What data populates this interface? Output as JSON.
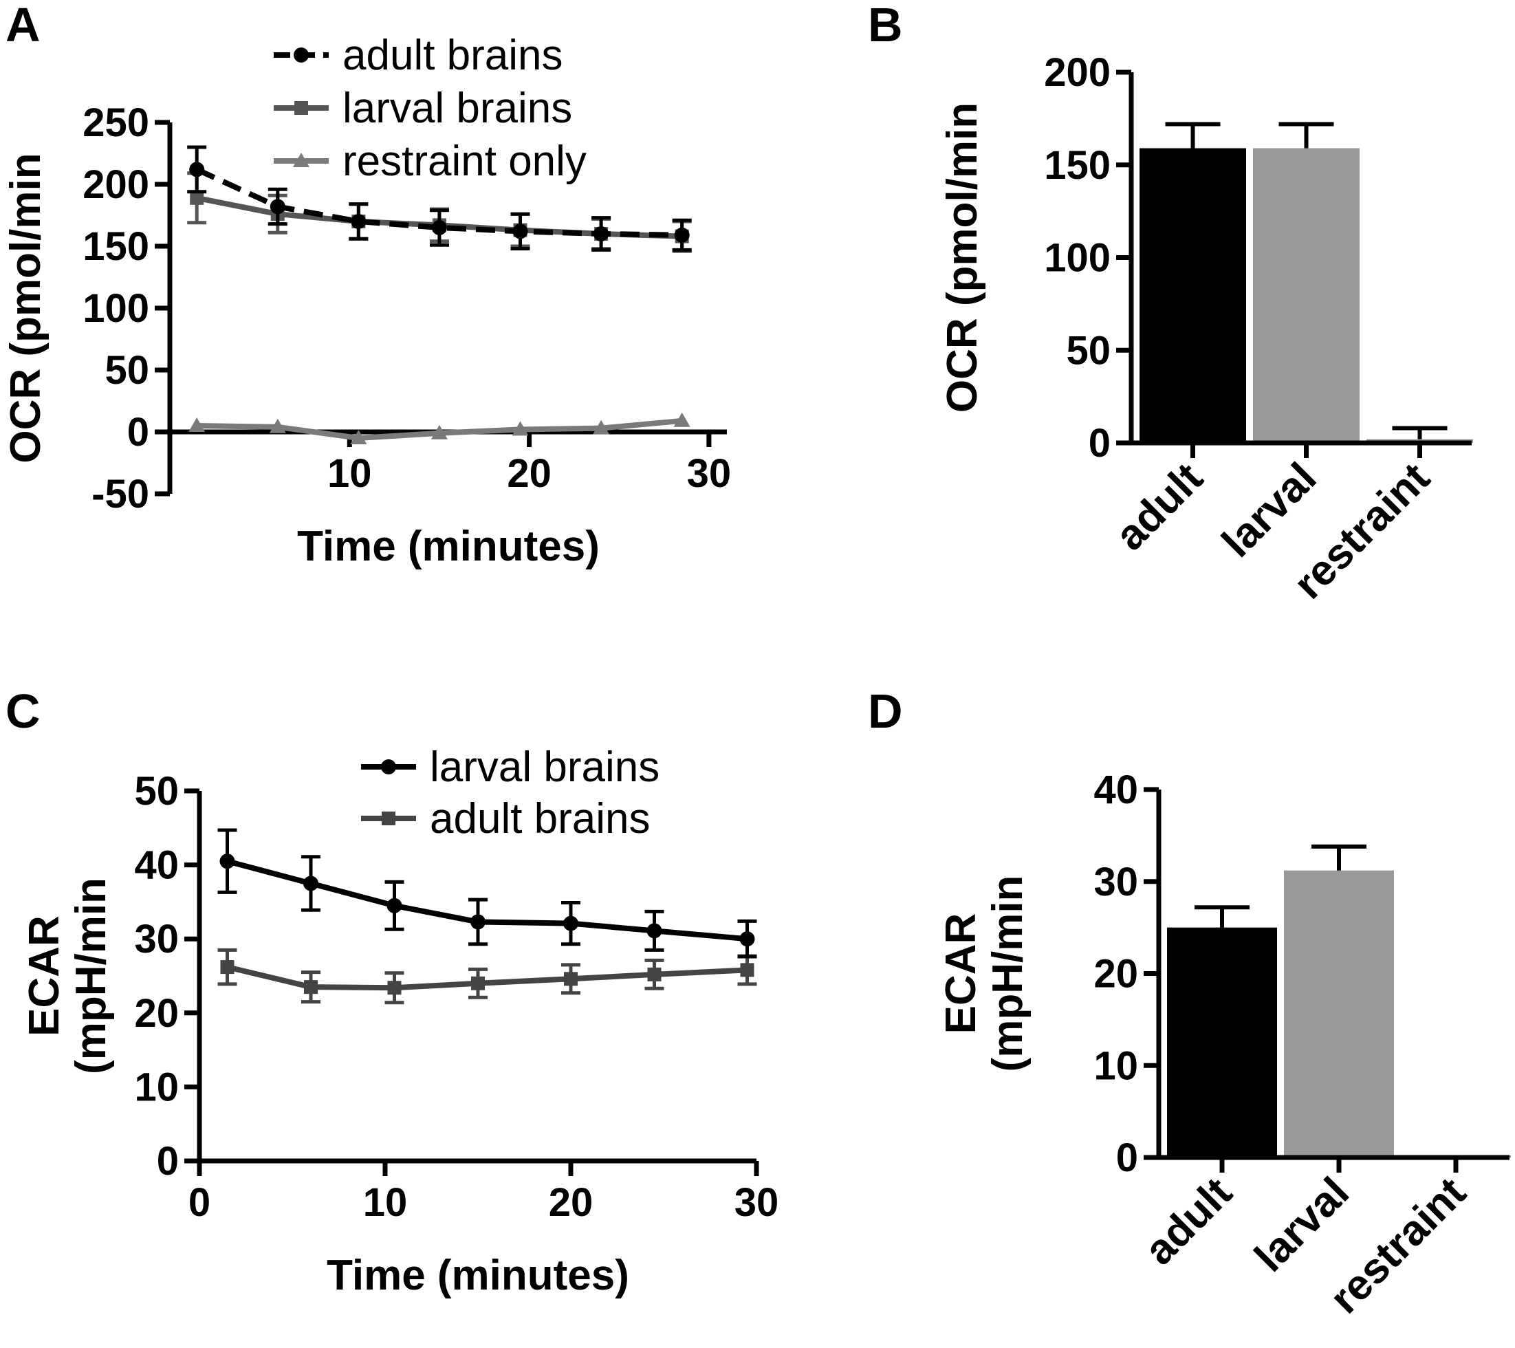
{
  "colors": {
    "black": "#000000",
    "dark_gray": "#444444",
    "mid_gray": "#777777",
    "bar_gray": "#999999"
  },
  "chart_data": [
    {
      "panel": "A",
      "type": "line",
      "xlabel": "Time (minutes)",
      "ylabel": "OCR (pmol/min",
      "xlim": [
        0,
        31
      ],
      "ylim": [
        -50,
        250
      ],
      "xticks": [
        "10",
        "20",
        "30"
      ],
      "yticks": [
        "250",
        "200",
        "150",
        "100",
        "50",
        "0",
        "-50"
      ],
      "xtick_values": [
        10,
        20,
        30
      ],
      "ytick_values": [
        250,
        200,
        150,
        100,
        50,
        0,
        -50
      ],
      "series": [
        {
          "name": "adult brains",
          "color": "#000000",
          "dash": true,
          "marker": "circle",
          "x": [
            1.5,
            6,
            10.5,
            15,
            19.5,
            24,
            28.5
          ],
          "y": [
            212,
            182,
            170,
            165,
            162,
            160,
            159
          ],
          "err": [
            18,
            14,
            14,
            14,
            14,
            13,
            12
          ]
        },
        {
          "name": "larval brains",
          "color": "#555555",
          "dash": false,
          "marker": "square",
          "x": [
            1.5,
            6,
            10.5,
            15,
            19.5,
            24,
            28.5
          ],
          "y": [
            189,
            176,
            170,
            167,
            163,
            160,
            158
          ],
          "err": [
            20,
            15,
            14,
            13,
            13,
            12,
            12
          ]
        },
        {
          "name": "restraint only",
          "color": "#7a7a7a",
          "dash": false,
          "marker": "triangle",
          "x": [
            1.5,
            6,
            10.5,
            15,
            19.5,
            24,
            28.5
          ],
          "y": [
            5,
            4,
            -5,
            -1,
            2,
            3,
            9
          ],
          "err": [
            0,
            0,
            0,
            0,
            0,
            0,
            0
          ]
        }
      ]
    },
    {
      "panel": "B",
      "type": "bar",
      "ylabel": "OCR (pmol/min",
      "ylim": [
        0,
        200
      ],
      "yticks": [
        "200",
        "150",
        "100",
        "50",
        "0"
      ],
      "ytick_values": [
        200,
        150,
        100,
        50,
        0
      ],
      "categories": [
        "adult",
        "larval",
        "restraint"
      ],
      "values": [
        159,
        159,
        2
      ],
      "err": [
        13,
        13,
        6
      ],
      "bar_colors": [
        "#000000",
        "#999999",
        "#999999"
      ]
    },
    {
      "panel": "C",
      "type": "line",
      "xlabel": "Time (minutes)",
      "ylabel_line1": "ECAR",
      "ylabel_line2": "(mpH/min",
      "xlim": [
        0,
        30
      ],
      "ylim": [
        0,
        50
      ],
      "xticks": [
        "0",
        "10",
        "20",
        "30"
      ],
      "yticks": [
        "50",
        "40",
        "30",
        "20",
        "10",
        "0"
      ],
      "xtick_values": [
        0,
        10,
        20,
        30
      ],
      "ytick_values": [
        50,
        40,
        30,
        20,
        10,
        0
      ],
      "series": [
        {
          "name": "larval brains",
          "color": "#000000",
          "dash": false,
          "marker": "circle",
          "x": [
            1.5,
            6,
            10.5,
            15,
            20,
            24.5,
            29.5
          ],
          "y": [
            40.5,
            37.5,
            34.5,
            32.3,
            32.1,
            31.1,
            30
          ],
          "err": [
            4.2,
            3.6,
            3.2,
            3.0,
            2.8,
            2.6,
            2.4
          ]
        },
        {
          "name": "adult brains",
          "color": "#444444",
          "dash": false,
          "marker": "square",
          "x": [
            1.5,
            6,
            10.5,
            15,
            20,
            24.5,
            29.5
          ],
          "y": [
            26.2,
            23.5,
            23.4,
            24,
            24.6,
            25.2,
            25.8
          ],
          "err": [
            2.3,
            2.0,
            2.0,
            1.9,
            1.9,
            1.9,
            1.9
          ]
        }
      ]
    },
    {
      "panel": "D",
      "type": "bar",
      "ylabel_line1": "ECAR",
      "ylabel_line2": "(mpH/min",
      "ylim": [
        0,
        40
      ],
      "yticks": [
        "40",
        "30",
        "20",
        "10",
        "0"
      ],
      "ytick_values": [
        40,
        30,
        20,
        10,
        0
      ],
      "categories": [
        "adult",
        "larval",
        "restraint"
      ],
      "values": [
        25,
        31.2,
        0.2
      ],
      "err": [
        2.2,
        2.6,
        0
      ],
      "bar_colors": [
        "#000000",
        "#999999",
        "#999999"
      ]
    }
  ]
}
